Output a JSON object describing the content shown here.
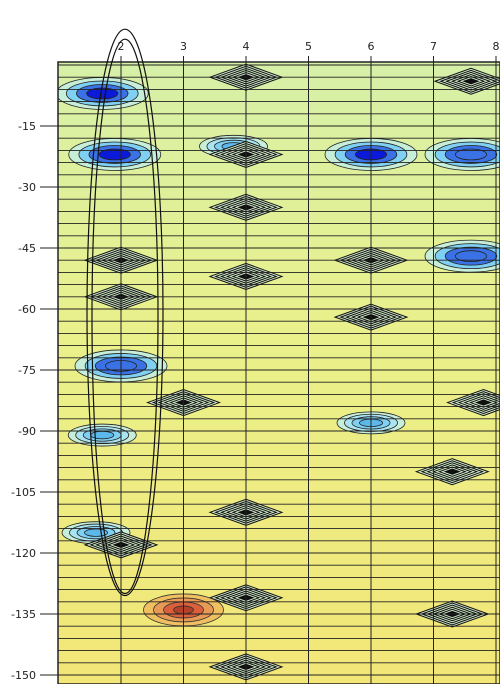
{
  "chart_data": {
    "type": "heatmap",
    "title": "",
    "xlabel": "",
    "ylabel": "",
    "x_ticks": [
      "2",
      "3",
      "4",
      "5",
      "6",
      "7",
      "8"
    ],
    "y_ticks": [
      "-15",
      "-30",
      "-45",
      "-60",
      "-75",
      "-90",
      "-105",
      "-120",
      "-135",
      "-150"
    ],
    "xlim": [
      1,
      8
    ],
    "ylim": [
      -150,
      0
    ],
    "grid": true,
    "colormap": [
      "#0a1ad8",
      "#3a72e6",
      "#7fd0f2",
      "#c7eed8",
      "#dff0a0",
      "#eaf08c",
      "#f5e96a",
      "#d9603a"
    ],
    "background_color": "#e6f08f",
    "highlight_ellipse": {
      "x_center": 2,
      "y_top": -3,
      "y_bottom": -128
    },
    "features": [
      {
        "kind": "blue_blob",
        "x": 1.7,
        "y": -7,
        "level": 0
      },
      {
        "kind": "blue_blob",
        "x": 1.9,
        "y": -22,
        "level": 0
      },
      {
        "kind": "blue_blob",
        "x": 2.0,
        "y": -74,
        "level": 1
      },
      {
        "kind": "blue_blob",
        "x": 6.0,
        "y": -22,
        "level": 0
      },
      {
        "kind": "blue_blob",
        "x": 7.6,
        "y": -22,
        "level": 1
      },
      {
        "kind": "blue_blob",
        "x": 7.6,
        "y": -47,
        "level": 1
      },
      {
        "kind": "cyan_blob",
        "x": 1.7,
        "y": -91,
        "level": 2
      },
      {
        "kind": "cyan_blob",
        "x": 1.6,
        "y": -115,
        "level": 2
      },
      {
        "kind": "cyan_blob",
        "x": 3.8,
        "y": -20,
        "level": 2
      },
      {
        "kind": "cyan_blob",
        "x": 6.0,
        "y": -88,
        "level": 2
      },
      {
        "kind": "diamond",
        "x": 4.0,
        "y": -3
      },
      {
        "kind": "diamond",
        "x": 7.6,
        "y": -4
      },
      {
        "kind": "diamond",
        "x": 4.0,
        "y": -22
      },
      {
        "kind": "diamond",
        "x": 4.0,
        "y": -35
      },
      {
        "kind": "diamond",
        "x": 2.0,
        "y": -48
      },
      {
        "kind": "diamond",
        "x": 4.0,
        "y": -52
      },
      {
        "kind": "diamond",
        "x": 2.0,
        "y": -57
      },
      {
        "kind": "diamond",
        "x": 6.0,
        "y": -48
      },
      {
        "kind": "diamond",
        "x": 6.0,
        "y": -62
      },
      {
        "kind": "diamond",
        "x": 3.0,
        "y": -83
      },
      {
        "kind": "diamond",
        "x": 7.8,
        "y": -83
      },
      {
        "kind": "diamond",
        "x": 7.3,
        "y": -100
      },
      {
        "kind": "diamond",
        "x": 4.0,
        "y": -110
      },
      {
        "kind": "diamond",
        "x": 2.0,
        "y": -118
      },
      {
        "kind": "diamond",
        "x": 4.0,
        "y": -131
      },
      {
        "kind": "diamond",
        "x": 7.3,
        "y": -135
      },
      {
        "kind": "diamond",
        "x": 4.0,
        "y": -148
      },
      {
        "kind": "hot_spot",
        "x": 3.0,
        "y": -134,
        "level": 7
      }
    ]
  }
}
